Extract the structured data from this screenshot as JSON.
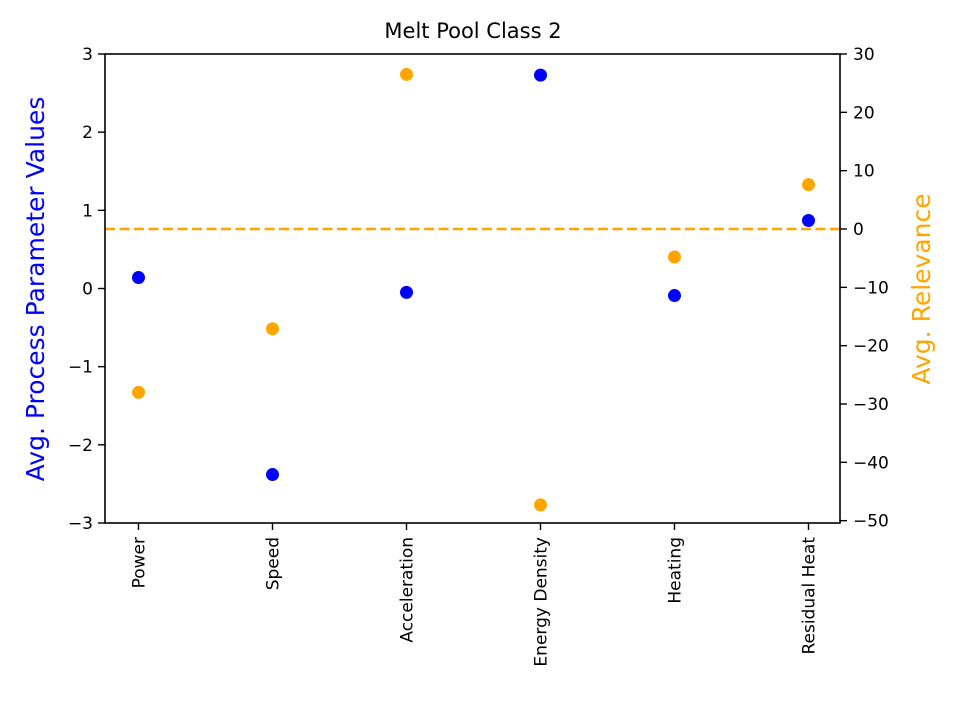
{
  "chart_data": {
    "type": "scatter",
    "title": "Melt Pool Class 2",
    "xlabel": "",
    "categories": [
      "Power",
      "Speed",
      "Acceleration",
      "Energy Density",
      "Heating",
      "Residual Heat"
    ],
    "left_axis": {
      "label": "Avg. Process Parameter Values",
      "color": "#0000ff",
      "ylim": [
        -3,
        3
      ],
      "ticks": [
        -3,
        -2,
        -1,
        0,
        1,
        2,
        3
      ],
      "tick_labels": [
        "−3",
        "−2",
        "−1",
        "0",
        "1",
        "2",
        "3"
      ]
    },
    "right_axis": {
      "label": "Avg. Relevance",
      "color": "#ffa500",
      "ylim": [
        -50.4,
        30
      ],
      "ticks": [
        -50,
        -40,
        -30,
        -20,
        -10,
        0,
        10,
        20,
        30
      ],
      "tick_labels": [
        "−50",
        "−40",
        "−30",
        "−20",
        "−10",
        "0",
        "10",
        "20",
        "30"
      ]
    },
    "series": [
      {
        "axis": "left",
        "color": "#0000ff",
        "values": [
          0.14,
          -2.38,
          -0.05,
          2.73,
          -0.09,
          0.87
        ]
      },
      {
        "axis": "right",
        "color": "#ffa500",
        "values": [
          -28.0,
          -17.1,
          26.5,
          -47.3,
          -4.8,
          7.6
        ]
      }
    ],
    "reference_line": {
      "axis": "right",
      "y": 0,
      "style": "dashed",
      "color": "#ffa500"
    },
    "grid": false,
    "legend": "none"
  }
}
